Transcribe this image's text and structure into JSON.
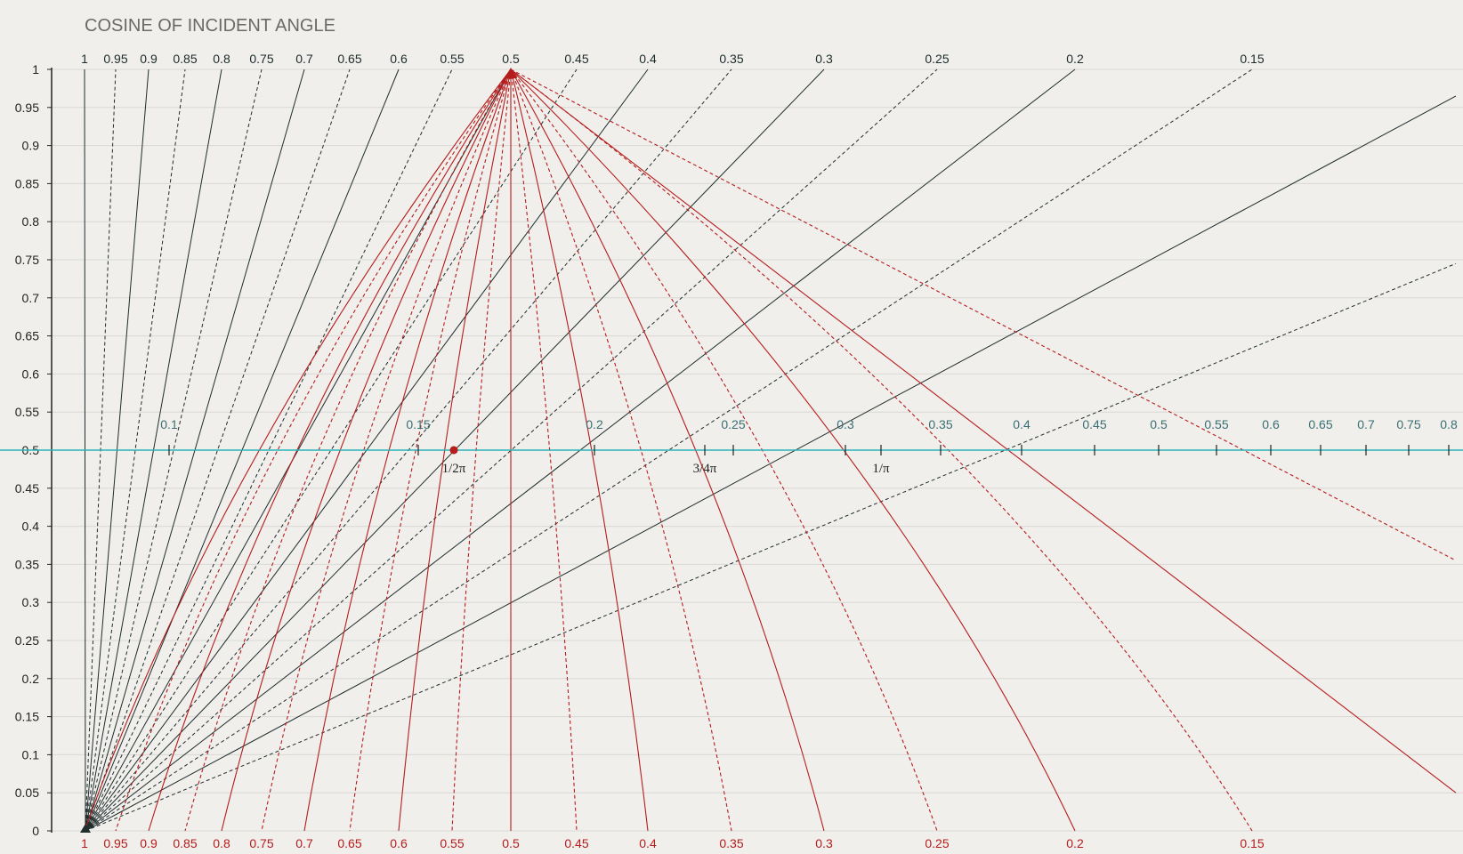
{
  "chart_data": {
    "type": "line",
    "title": "COSINE OF INCIDENT ANGLE",
    "ylim": [
      0,
      1
    ],
    "y_ticks": [
      "0",
      "0.05",
      "0.1",
      "0.15",
      "0.2",
      "0.25",
      "0.3",
      "0.35",
      "0.4",
      "0.45",
      "0.5",
      "0.55",
      "0.6",
      "0.65",
      "0.7",
      "0.75",
      "0.8",
      "0.85",
      "0.9",
      "0.95",
      "1"
    ],
    "grid": true,
    "legend": "none",
    "colors": {
      "background": "#f0efec",
      "dark_lines": "#1f2d2d",
      "red_lines": "#b51c1c",
      "horizon_line": "#2ab3b8",
      "grid": "#d9d8d4"
    },
    "top_fan": {
      "description_labels": [
        "1",
        "0.95",
        "0.9",
        "0.85",
        "0.8",
        "0.75",
        "0.7",
        "0.65",
        "0.6",
        "0.55",
        "0.5",
        "0.45",
        "0.4",
        "0.35",
        "0.3",
        "0.25",
        "0.2",
        "0.15"
      ],
      "dashed": [
        false,
        true,
        false,
        true,
        false,
        true,
        false,
        true,
        false,
        true,
        false,
        true,
        false,
        true,
        false,
        true,
        false,
        true
      ]
    },
    "bottom_fan": {
      "labels": [
        "1",
        "0.95",
        "0.9",
        "0.85",
        "0.8",
        "0.75",
        "0.7",
        "0.65",
        "0.6",
        "0.55",
        "0.5",
        "0.45",
        "0.4",
        "0.35",
        "0.3",
        "0.25",
        "0.2",
        "0.15"
      ]
    },
    "midline": {
      "y": 0.5,
      "labels": [
        "0.1",
        "0.15",
        "0.2",
        "0.25",
        "0.3",
        "0.35",
        "0.4",
        "0.45",
        "0.5",
        "0.55",
        "0.6",
        "0.65",
        "0.7",
        "0.75",
        "0.8"
      ]
    },
    "markers": [
      {
        "label": "1/2π"
      },
      {
        "label": "3/4π"
      },
      {
        "label": "1/π"
      }
    ]
  }
}
